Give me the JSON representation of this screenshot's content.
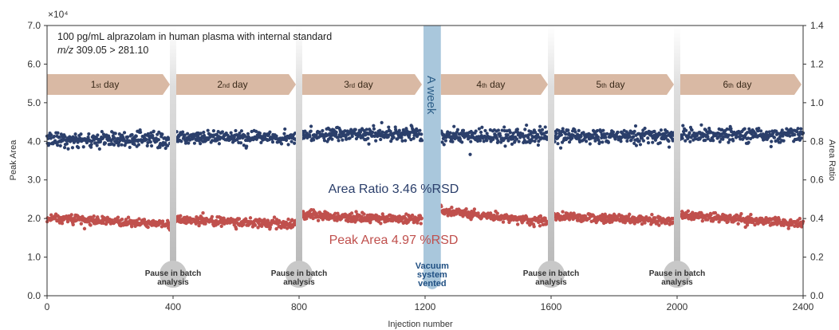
{
  "chart_data": {
    "type": "scatter",
    "xlabel": "Injection number",
    "ylabel": "Peak Area",
    "y2label": "Area Ratio",
    "y_multiplier": "×10⁴",
    "xlim": [
      0,
      2400
    ],
    "ylim": [
      0,
      7.0
    ],
    "y2lim": [
      0,
      1.4
    ],
    "x_ticks": [
      "0",
      "400",
      "800",
      "1200",
      "1600",
      "2000",
      "2400"
    ],
    "y_ticks": [
      "0.0",
      "1.0",
      "2.0",
      "3.0",
      "4.0",
      "5.0",
      "6.0",
      "7.0"
    ],
    "y2_ticks": [
      "0.0",
      "0.2",
      "0.4",
      "0.6",
      "0.8",
      "1.0",
      "1.2",
      "1.4"
    ],
    "grid": false,
    "annotation_line1": "100 pg/mL alprazolam in human plasma with internal standard",
    "annotation_line2_italic": "m/z",
    "annotation_line2_rest": " 309.05 > 281.10",
    "days": [
      {
        "num": "1",
        "suffix": "st day",
        "x_start": 0,
        "x_end": 390
      },
      {
        "num": "2",
        "suffix": "nd day",
        "x_start": 410,
        "x_end": 790
      },
      {
        "num": "3",
        "suffix": "rd day",
        "x_start": 810,
        "x_end": 1190
      },
      {
        "num": "4",
        "suffix": "th day",
        "x_start": 1250,
        "x_end": 1590
      },
      {
        "num": "5",
        "suffix": "th day",
        "x_start": 1610,
        "x_end": 1990
      },
      {
        "num": "6",
        "suffix": "th day",
        "x_start": 2010,
        "x_end": 2400
      }
    ],
    "pauses": [
      {
        "x": 400,
        "label_line1": "Pause in batch",
        "label_line2": "analysis"
      },
      {
        "x": 800,
        "label_line1": "Pause in batch",
        "label_line2": "analysis"
      },
      {
        "x": 1600,
        "label_line1": "Pause in batch",
        "label_line2": "analysis"
      },
      {
        "x": 2000,
        "label_line1": "Pause in batch",
        "label_line2": "analysis"
      }
    ],
    "vent": {
      "x_start": 1195,
      "x_end": 1250,
      "week_label": "A week",
      "label_lines": [
        "Vacuum",
        "system",
        "vented"
      ]
    },
    "series": [
      {
        "name": "Area Ratio",
        "rsd_label": "Area Ratio 3.46 %RSD",
        "axis": "right",
        "color": "#2b3f6b",
        "segments": [
          {
            "x_start": 0,
            "x_end": 390,
            "mean": 0.808,
            "spread": 0.034
          },
          {
            "x_start": 410,
            "x_end": 790,
            "mean": 0.822,
            "spread": 0.03
          },
          {
            "x_start": 810,
            "x_end": 1190,
            "mean": 0.836,
            "spread": 0.032
          },
          {
            "x_start": 1250,
            "x_end": 1590,
            "mean": 0.826,
            "spread": 0.036
          },
          {
            "x_start": 1610,
            "x_end": 1990,
            "mean": 0.826,
            "spread": 0.034
          },
          {
            "x_start": 2010,
            "x_end": 2400,
            "mean": 0.834,
            "spread": 0.034
          }
        ]
      },
      {
        "name": "Peak Area",
        "rsd_label": "Peak Area 4.97 %RSD",
        "axis": "left",
        "color": "#c0504d",
        "segments": [
          {
            "x_start": 0,
            "x_end": 390,
            "mean_start": 2.03,
            "mean_end": 1.84,
            "spread": 0.1
          },
          {
            "x_start": 410,
            "x_end": 790,
            "mean_start": 1.97,
            "mean_end": 1.84,
            "spread": 0.1
          },
          {
            "x_start": 810,
            "x_end": 1190,
            "mean_start": 2.09,
            "mean_end": 1.97,
            "spread": 0.1
          },
          {
            "x_start": 1250,
            "x_end": 1590,
            "mean_start": 2.2,
            "mean_end": 1.92,
            "spread": 0.1
          },
          {
            "x_start": 1610,
            "x_end": 1990,
            "mean_start": 2.06,
            "mean_end": 1.93,
            "spread": 0.1
          },
          {
            "x_start": 2010,
            "x_end": 2400,
            "mean_start": 2.1,
            "mean_end": 1.86,
            "spread": 0.1
          }
        ]
      }
    ],
    "colors": {
      "day_band": "#d9b9a4",
      "pause_band": "#c8c8c8",
      "vent_band": "#a9c7dc",
      "axis": "#333333"
    }
  }
}
